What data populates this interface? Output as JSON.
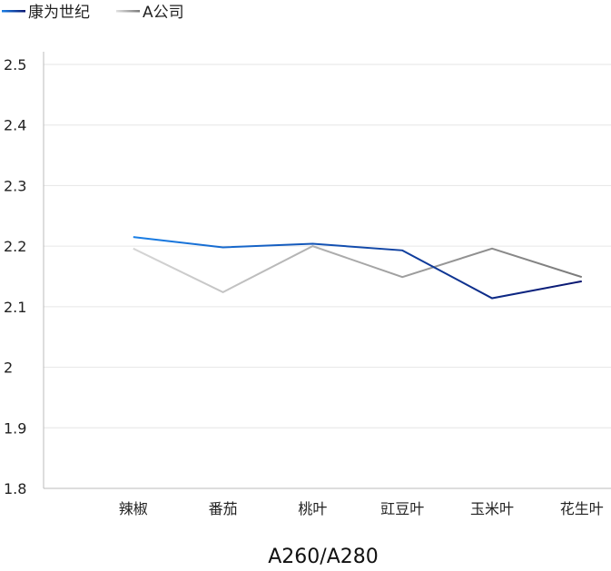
{
  "chart_data": {
    "type": "line",
    "title": "",
    "xlabel": "A260/A280",
    "ylabel": "",
    "ylim": [
      1.8,
      2.5
    ],
    "yticks": [
      1.8,
      1.9,
      2,
      2.1,
      2.2,
      2.3,
      2.4,
      2.5
    ],
    "ytick_labels": [
      "1.8",
      "1.9",
      "2",
      "2.1",
      "2.2",
      "2.3",
      "2.4",
      "2.5"
    ],
    "grid": true,
    "legend_position": "top-left",
    "categories": [
      "辣椒",
      "番茄",
      "桃叶",
      "豇豆叶",
      "玉米叶",
      "花生叶"
    ],
    "series": [
      {
        "name": "康为世纪",
        "values": [
          2.215,
          2.198,
          2.204,
          2.193,
          2.114,
          2.142
        ],
        "colors": [
          "#1a7fe6",
          "#0a1670"
        ]
      },
      {
        "name": "A公司",
        "values": [
          2.196,
          2.124,
          2.2,
          2.149,
          2.196,
          2.149
        ],
        "colors": [
          "#d6d6d6",
          "#7a7a7a"
        ]
      }
    ]
  }
}
